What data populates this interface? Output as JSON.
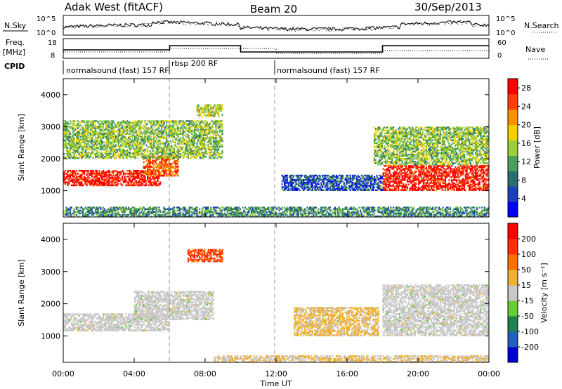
{
  "header": {
    "radar": "Adak West (fitACF)",
    "beam": "Beam 20",
    "date": "30/Sep/2013"
  },
  "noise_panel": {
    "left_label": "N.Sky",
    "left_ticks": [
      "10^5",
      "10^0"
    ],
    "right_label": "N.Search",
    "right_ticks": [
      "10^5",
      "10^0"
    ]
  },
  "freq_panel": {
    "left_label_1": "Freq.",
    "left_label_2": "[MHz]",
    "left_ticks": [
      "18",
      "8"
    ],
    "right_label": "Nave",
    "right_ticks": [
      "60",
      "0"
    ]
  },
  "cpid": {
    "label": "CPID",
    "segments": [
      {
        "text": "normalsound (fast) 157 RF",
        "start_h": 0,
        "end_h": 6
      },
      {
        "text": "rbsp 200 RF",
        "start_h": 6,
        "end_h": 12
      },
      {
        "text": "normalsound (fast) 157 RF",
        "start_h": 12,
        "end_h": 24
      }
    ]
  },
  "chart_data": [
    {
      "type": "heatmap",
      "name": "power",
      "ylabel": "Slant Range [km]",
      "xlabel": "Time UT",
      "x_ticks": [
        "00:00",
        "04:00",
        "08:00",
        "12:00",
        "16:00",
        "20:00",
        "00:00"
      ],
      "xlim_hours": [
        0,
        24
      ],
      "ylim_km": [
        180,
        4500
      ],
      "y_ticks": [
        1000,
        2000,
        3000,
        4000
      ],
      "colorbar": {
        "label": "Power [dB]",
        "ticks": [
          4,
          8,
          12,
          16,
          20,
          24,
          28
        ],
        "range": [
          0,
          30
        ],
        "colors": [
          "#0000ff",
          "#1c3fc0",
          "#2a6e6e",
          "#4aa05a",
          "#9ccf3a",
          "#f5d000",
          "#ff9000",
          "#ff4000",
          "#ff0000"
        ]
      },
      "features": [
        {
          "desc": "strong band",
          "t0": 0,
          "t1": 5.5,
          "r0": 1150,
          "r1": 1650,
          "value": 28
        },
        {
          "desc": "rising band",
          "t0": 4.5,
          "t1": 6.5,
          "r0": 1450,
          "r1": 2100,
          "value": 24
        },
        {
          "desc": "upper patches",
          "t0": 0,
          "t1": 9,
          "r0": 2000,
          "r1": 3200,
          "value": 14
        },
        {
          "desc": "far patch",
          "t0": 7.5,
          "t1": 9,
          "r0": 3300,
          "r1": 3700,
          "value": 16
        },
        {
          "desc": "evening strong band",
          "t0": 18,
          "t1": 24,
          "r0": 1000,
          "r1": 1800,
          "value": 28
        },
        {
          "desc": "evening upper",
          "t0": 17.5,
          "t1": 24,
          "r0": 1800,
          "r1": 3000,
          "value": 14
        },
        {
          "desc": "afternoon weak",
          "t0": 12.3,
          "t1": 18,
          "r0": 1000,
          "r1": 1500,
          "value": 6
        },
        {
          "desc": "near range clutter",
          "t0": 0,
          "t1": 24,
          "r0": 180,
          "r1": 500,
          "value": 10
        }
      ]
    },
    {
      "type": "heatmap",
      "name": "velocity",
      "ylabel": "Slant Range [km]",
      "xlabel": "Time UT",
      "x_ticks": [
        "00:00",
        "04:00",
        "08:00",
        "12:00",
        "16:00",
        "20:00",
        "00:00"
      ],
      "xlim_hours": [
        0,
        24
      ],
      "ylim_km": [
        180,
        4500
      ],
      "y_ticks": [
        1000,
        2000,
        3000,
        4000
      ],
      "colorbar": {
        "label": "Velocity [m s⁻¹]",
        "ticks": [
          "200",
          "100",
          "50",
          "15",
          "-15",
          "-50",
          "-100",
          "-200"
        ],
        "range": [
          -250,
          250
        ],
        "colors": [
          "#0000d0",
          "#2060c0",
          "#208050",
          "#66cc33",
          "#c8c8c8",
          "#f0b030",
          "#ff7000",
          "#ff3000",
          "#ff0000"
        ]
      },
      "features": [
        {
          "desc": "ground scatter band",
          "t0": 0,
          "t1": 6,
          "r0": 1150,
          "r1": 1700,
          "value": 0
        },
        {
          "desc": "rising ground scatter",
          "t0": 4,
          "t1": 8.5,
          "r0": 1500,
          "r1": 2400,
          "value": 0
        },
        {
          "desc": "far ionospheric patch",
          "t0": 7,
          "t1": 9,
          "r0": 3300,
          "r1": 3700,
          "value": 150
        },
        {
          "desc": "evening ground scatter",
          "t0": 18,
          "t1": 24,
          "r0": 1000,
          "r1": 2600,
          "value": 0
        },
        {
          "desc": "afternoon positive",
          "t0": 13,
          "t1": 17.8,
          "r0": 1000,
          "r1": 1900,
          "value": 40
        },
        {
          "desc": "near range positive",
          "t0": 8.5,
          "t1": 24,
          "r0": 180,
          "r1": 400,
          "value": 30
        }
      ]
    }
  ]
}
